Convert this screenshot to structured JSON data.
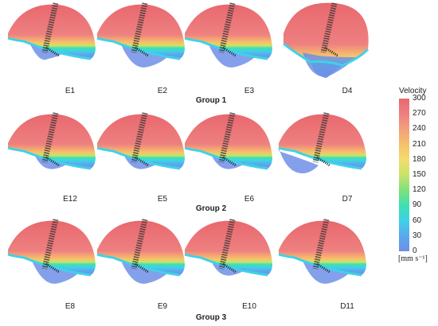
{
  "cases": [
    {
      "label": "E1",
      "variant": "a"
    },
    {
      "label": "E2",
      "variant": "b"
    },
    {
      "label": "E3",
      "variant": "b"
    },
    {
      "label": "D4",
      "variant": "d"
    },
    {
      "label": "E12",
      "variant": "c"
    },
    {
      "label": "E5",
      "variant": "c"
    },
    {
      "label": "E6",
      "variant": "c"
    },
    {
      "label": "D7",
      "variant": "e"
    },
    {
      "label": "E8",
      "variant": "b"
    },
    {
      "label": "E9",
      "variant": "b"
    },
    {
      "label": "E10",
      "variant": "c"
    },
    {
      "label": "D11",
      "variant": "b"
    }
  ],
  "groups": [
    "Group 1",
    "Group 2",
    "Group 3"
  ],
  "colorbar": {
    "title": "Velocity",
    "unit": "[mm s⁻¹]",
    "ticks": [
      "300",
      "270",
      "240",
      "210",
      "180",
      "150",
      "120",
      "90",
      "60",
      "30",
      "0"
    ],
    "stops": [
      "#6f8fe6",
      "#5aa8ee",
      "#3fd1e8",
      "#3fe0b0",
      "#7fe07a",
      "#c8e36a",
      "#f2dc6e",
      "#f7c06a",
      "#f3a07a",
      "#ee7f82",
      "#e8686e"
    ]
  }
}
